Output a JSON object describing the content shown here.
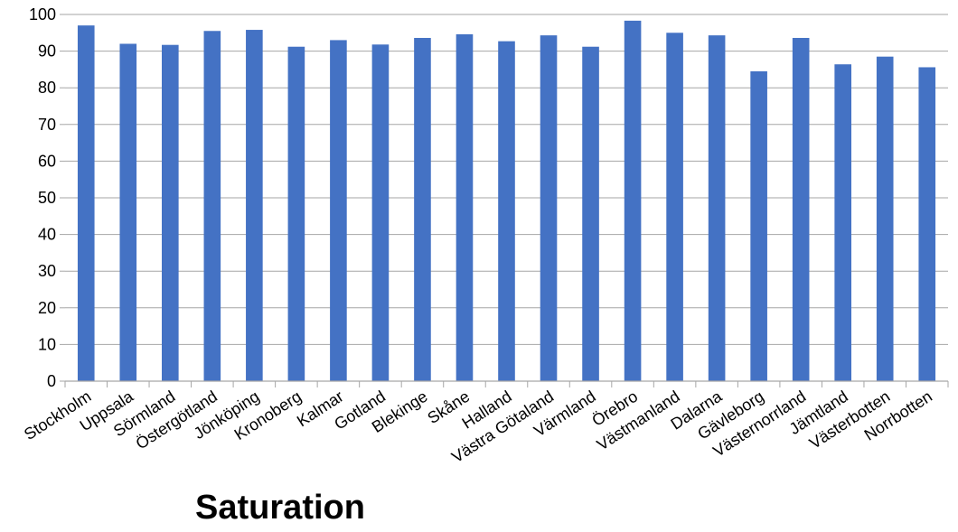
{
  "chart_data": {
    "type": "bar",
    "title": "Saturation",
    "xlabel": "",
    "ylabel": "",
    "ylim": [
      0,
      100
    ],
    "yticks": [
      0,
      10,
      20,
      30,
      40,
      50,
      60,
      70,
      80,
      90,
      100
    ],
    "grid": true,
    "legend": "none",
    "categories": [
      "Stockholm",
      "Uppsala",
      "Sörmland",
      "Östergötland",
      "Jönköping",
      "Kronoberg",
      "Kalmar",
      "Gotland",
      "Blekinge",
      "Skåne",
      "Halland",
      "Västra Götaland",
      "Värmland",
      "Örebro",
      "Västmanland",
      "Dalarna",
      "Gävleborg",
      "Västernorrland",
      "Jämtland",
      "Västerbotten",
      "Norrbotten"
    ],
    "series": [
      {
        "values": [
          97.0,
          92.0,
          91.7,
          95.5,
          95.8,
          91.2,
          93.0,
          91.8,
          93.6,
          94.6,
          92.7,
          94.3,
          91.2,
          98.3,
          95.0,
          94.3,
          84.5,
          93.6,
          86.4,
          88.5,
          85.6
        ]
      }
    ],
    "colors": {
      "bar": "#4472C4",
      "grid": "#a6a6a6",
      "axis": "#a6a6a6"
    }
  }
}
